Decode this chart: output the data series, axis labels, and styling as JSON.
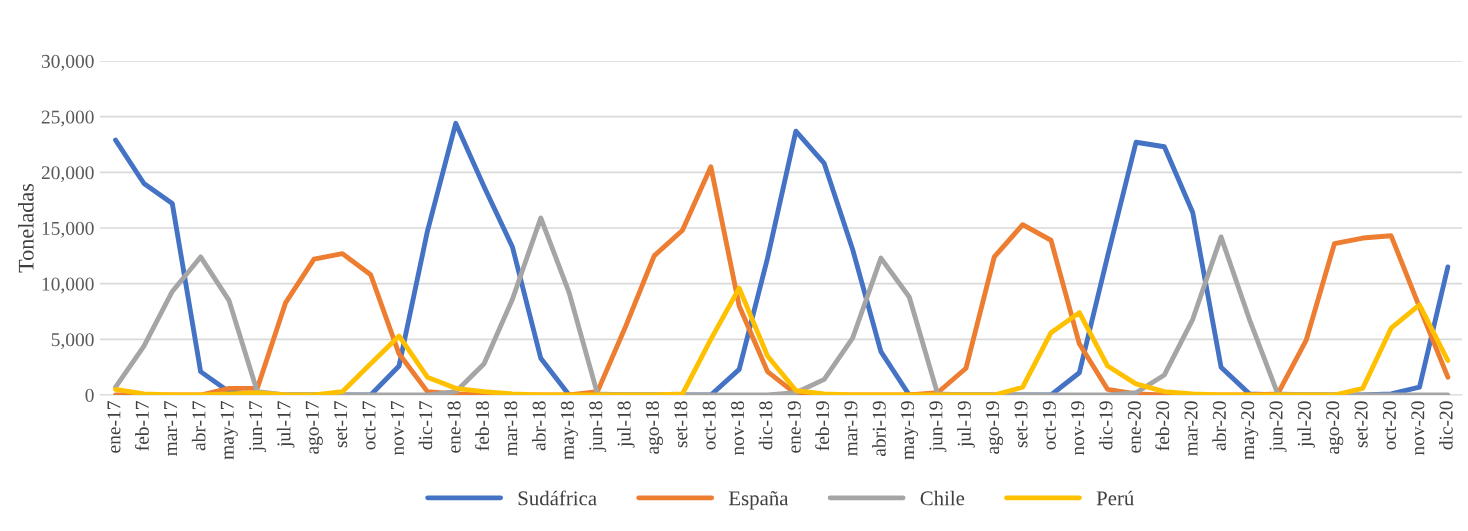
{
  "chart_data": {
    "type": "line",
    "ylabel": "Toneladas",
    "categories": [
      "ene-17",
      "feb-17",
      "mar-17",
      "abr-17",
      "may-17",
      "jun-17",
      "jul-17",
      "ago-17",
      "set-17",
      "oct-17",
      "nov-17",
      "dic-17",
      "ene-18",
      "feb-18",
      "mar-18",
      "abr-18",
      "may-18",
      "jun-18",
      "jul-18",
      "ago-18",
      "set-18",
      "oct-18",
      "nov-18",
      "dic-18",
      "ene-19",
      "feb-19",
      "mar-19",
      "abri-19",
      "may-19",
      "jun-19",
      "jul-19",
      "ago-19",
      "set-19",
      "oct-19",
      "nov-19",
      "dic-19",
      "ene-20",
      "feb-20",
      "mar-20",
      "abr-20",
      "may-20",
      "jun-20",
      "jul-20",
      "ago-20",
      "set-20",
      "oct-20",
      "nov-20",
      "dic-20"
    ],
    "series": [
      {
        "name": "Sudáfrica",
        "color": "#4472c4",
        "values": [
          22900,
          19000,
          17200,
          2100,
          300,
          0,
          0,
          0,
          0,
          0,
          2600,
          14700,
          24400,
          18700,
          13300,
          3300,
          0,
          0,
          0,
          0,
          0,
          0,
          2300,
          12300,
          23700,
          20800,
          13100,
          3900,
          0,
          0,
          0,
          0,
          0,
          0,
          2000,
          12500,
          22700,
          22300,
          16400,
          2500,
          100,
          0,
          0,
          0,
          0,
          100,
          700,
          11500
        ]
      },
      {
        "name": "España",
        "color": "#ed7d31",
        "values": [
          0,
          0,
          0,
          0,
          600,
          600,
          8300,
          12200,
          12700,
          10800,
          3700,
          300,
          100,
          0,
          0,
          0,
          0,
          300,
          6200,
          12500,
          14800,
          20500,
          8000,
          2100,
          100,
          0,
          0,
          0,
          0,
          200,
          2400,
          12400,
          15300,
          13900,
          4600,
          500,
          100,
          0,
          0,
          0,
          0,
          100,
          4900,
          13600,
          14100,
          14300,
          7900,
          1600
        ]
      },
      {
        "name": "Chile",
        "color": "#a5a5a5",
        "values": [
          700,
          4400,
          9300,
          12400,
          8500,
          300,
          0,
          0,
          0,
          0,
          0,
          0,
          300,
          2800,
          8600,
          15900,
          9200,
          100,
          0,
          0,
          0,
          0,
          0,
          0,
          200,
          1400,
          5100,
          12300,
          8800,
          100,
          0,
          0,
          0,
          0,
          0,
          0,
          200,
          1800,
          6800,
          14200,
          6800,
          100,
          0,
          0,
          0,
          0,
          0,
          0
        ]
      },
      {
        "name": "Perú",
        "color": "#ffc000",
        "values": [
          500,
          100,
          0,
          0,
          100,
          200,
          0,
          0,
          300,
          2800,
          5300,
          1600,
          600,
          300,
          100,
          0,
          0,
          0,
          0,
          0,
          100,
          5000,
          9600,
          3500,
          400,
          100,
          0,
          0,
          0,
          0,
          0,
          0,
          700,
          5600,
          7400,
          2600,
          1000,
          300,
          100,
          0,
          0,
          0,
          0,
          0,
          600,
          6000,
          8100,
          3100
        ]
      }
    ],
    "ylim": [
      0,
      30000
    ],
    "yticks": [
      {
        "value": 0,
        "label": "0"
      },
      {
        "value": 5000,
        "label": "5,000"
      },
      {
        "value": 10000,
        "label": "10,000"
      },
      {
        "value": 15000,
        "label": "15,000"
      },
      {
        "value": 20000,
        "label": "20,000"
      },
      {
        "value": 25000,
        "label": "25,000"
      },
      {
        "value": 30000,
        "label": "30,000"
      }
    ],
    "grid": "y",
    "legend": "bottom",
    "marker": "none",
    "line_style": "solid"
  }
}
